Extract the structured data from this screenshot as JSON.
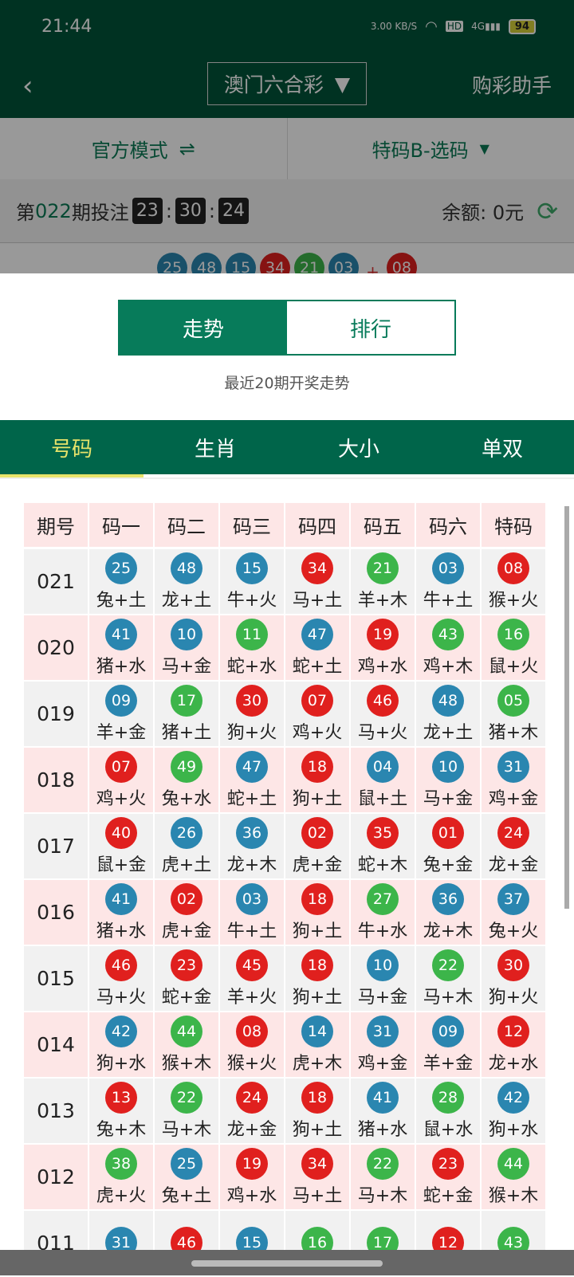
{
  "status": {
    "time": "21:44",
    "speed": "3.00 KB/S",
    "hd": "HD",
    "net": "4G",
    "battery": "94"
  },
  "header": {
    "lottery": "澳门六合彩",
    "assistant": "购彩助手"
  },
  "mode": {
    "official": "官方模式",
    "official_icon": "⇌",
    "play": "特码B-选码"
  },
  "countdown": {
    "prefix": "第",
    "issue": "022",
    "suffix": "期投注",
    "h": "23",
    "m": "30",
    "s": "24",
    "balance_label": "余额:",
    "balance": "0元"
  },
  "last_draw": {
    "balls": [
      {
        "n": "25",
        "c": "blue"
      },
      {
        "n": "48",
        "c": "blue"
      },
      {
        "n": "15",
        "c": "blue"
      },
      {
        "n": "34",
        "c": "red"
      },
      {
        "n": "21",
        "c": "green"
      },
      {
        "n": "03",
        "c": "blue"
      }
    ],
    "plus": "+",
    "special": {
      "n": "08",
      "c": "red"
    }
  },
  "segment": {
    "trend": "走势",
    "rank": "排行"
  },
  "subtitle": "最近20期开奖走势",
  "tabs": [
    "号码",
    "生肖",
    "大小",
    "单双"
  ],
  "colors": {
    "blue": "#2a86b0",
    "red": "#e0201e",
    "green": "#3cb54a",
    "brand": "#00543a"
  },
  "table": {
    "headers": [
      "期号",
      "码一",
      "码二",
      "码三",
      "码四",
      "码五",
      "码六",
      "特码"
    ],
    "rows": [
      {
        "issue": "021",
        "b": [
          [
            "25",
            "blue",
            "兔+土"
          ],
          [
            "48",
            "blue",
            "龙+土"
          ],
          [
            "15",
            "blue",
            "牛+火"
          ],
          [
            "34",
            "red",
            "马+土"
          ],
          [
            "21",
            "green",
            "羊+木"
          ],
          [
            "03",
            "blue",
            "牛+土"
          ],
          [
            "08",
            "red",
            "猴+火"
          ]
        ]
      },
      {
        "issue": "020",
        "b": [
          [
            "41",
            "blue",
            "猪+水"
          ],
          [
            "10",
            "blue",
            "马+金"
          ],
          [
            "11",
            "green",
            "蛇+水"
          ],
          [
            "47",
            "blue",
            "蛇+土"
          ],
          [
            "19",
            "red",
            "鸡+水"
          ],
          [
            "43",
            "green",
            "鸡+木"
          ],
          [
            "16",
            "green",
            "鼠+火"
          ]
        ]
      },
      {
        "issue": "019",
        "b": [
          [
            "09",
            "blue",
            "羊+金"
          ],
          [
            "17",
            "green",
            "猪+土"
          ],
          [
            "30",
            "red",
            "狗+火"
          ],
          [
            "07",
            "red",
            "鸡+火"
          ],
          [
            "46",
            "red",
            "马+火"
          ],
          [
            "48",
            "blue",
            "龙+土"
          ],
          [
            "05",
            "green",
            "猪+木"
          ]
        ]
      },
      {
        "issue": "018",
        "b": [
          [
            "07",
            "red",
            "鸡+火"
          ],
          [
            "49",
            "green",
            "兔+水"
          ],
          [
            "47",
            "blue",
            "蛇+土"
          ],
          [
            "18",
            "red",
            "狗+土"
          ],
          [
            "04",
            "blue",
            "鼠+土"
          ],
          [
            "10",
            "blue",
            "马+金"
          ],
          [
            "31",
            "blue",
            "鸡+金"
          ]
        ]
      },
      {
        "issue": "017",
        "b": [
          [
            "40",
            "red",
            "鼠+金"
          ],
          [
            "26",
            "blue",
            "虎+土"
          ],
          [
            "36",
            "blue",
            "龙+木"
          ],
          [
            "02",
            "red",
            "虎+金"
          ],
          [
            "35",
            "red",
            "蛇+木"
          ],
          [
            "01",
            "red",
            "兔+金"
          ],
          [
            "24",
            "red",
            "龙+金"
          ]
        ]
      },
      {
        "issue": "016",
        "b": [
          [
            "41",
            "blue",
            "猪+水"
          ],
          [
            "02",
            "red",
            "虎+金"
          ],
          [
            "03",
            "blue",
            "牛+土"
          ],
          [
            "18",
            "red",
            "狗+土"
          ],
          [
            "27",
            "green",
            "牛+水"
          ],
          [
            "36",
            "blue",
            "龙+木"
          ],
          [
            "37",
            "blue",
            "兔+火"
          ]
        ]
      },
      {
        "issue": "015",
        "b": [
          [
            "46",
            "red",
            "马+火"
          ],
          [
            "23",
            "red",
            "蛇+金"
          ],
          [
            "45",
            "red",
            "羊+火"
          ],
          [
            "18",
            "red",
            "狗+土"
          ],
          [
            "10",
            "blue",
            "马+金"
          ],
          [
            "22",
            "green",
            "马+木"
          ],
          [
            "30",
            "red",
            "狗+火"
          ]
        ]
      },
      {
        "issue": "014",
        "b": [
          [
            "42",
            "blue",
            "狗+水"
          ],
          [
            "44",
            "green",
            "猴+木"
          ],
          [
            "08",
            "red",
            "猴+火"
          ],
          [
            "14",
            "blue",
            "虎+木"
          ],
          [
            "31",
            "blue",
            "鸡+金"
          ],
          [
            "09",
            "blue",
            "羊+金"
          ],
          [
            "12",
            "red",
            "龙+水"
          ]
        ]
      },
      {
        "issue": "013",
        "b": [
          [
            "13",
            "red",
            "兔+木"
          ],
          [
            "22",
            "green",
            "马+木"
          ],
          [
            "24",
            "red",
            "龙+金"
          ],
          [
            "18",
            "red",
            "狗+土"
          ],
          [
            "41",
            "blue",
            "猪+水"
          ],
          [
            "28",
            "green",
            "鼠+水"
          ],
          [
            "42",
            "blue",
            "狗+水"
          ]
        ]
      },
      {
        "issue": "012",
        "b": [
          [
            "38",
            "green",
            "虎+火"
          ],
          [
            "25",
            "blue",
            "兔+土"
          ],
          [
            "19",
            "red",
            "鸡+水"
          ],
          [
            "34",
            "red",
            "马+土"
          ],
          [
            "22",
            "green",
            "马+木"
          ],
          [
            "23",
            "red",
            "蛇+金"
          ],
          [
            "44",
            "green",
            "猴+木"
          ]
        ]
      },
      {
        "issue": "011",
        "b": [
          [
            "31",
            "blue",
            ""
          ],
          [
            "46",
            "red",
            ""
          ],
          [
            "15",
            "blue",
            ""
          ],
          [
            "16",
            "green",
            ""
          ],
          [
            "17",
            "green",
            ""
          ],
          [
            "12",
            "red",
            ""
          ],
          [
            "43",
            "green",
            ""
          ]
        ]
      }
    ]
  }
}
